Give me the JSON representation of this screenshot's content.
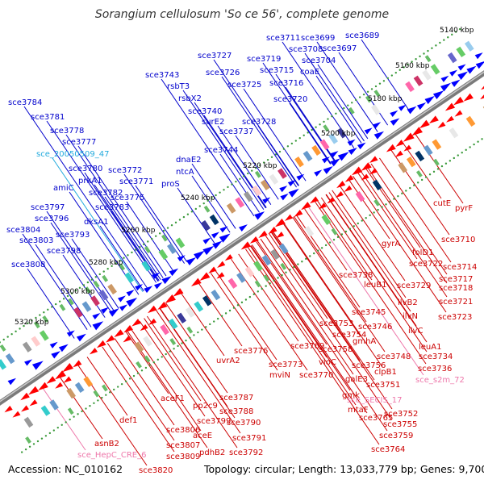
{
  "title": "Sorangium cellulosum 'So ce 56', complete genome",
  "footer": {
    "accession": "Accession: NC_010162",
    "topology": "Topology: circular; Length: 13,033,779 bp; Genes: 9,700"
  },
  "colors": {
    "forward_label": "#0000cc",
    "reverse_label": "#cc0000",
    "rna_label_blue": "#22aadd",
    "rna_label_pink": "#ee77aa",
    "forward_gene": "#0000ff",
    "reverse_gene": "#ff0000",
    "backbone": "#7a7a7a",
    "tick": "#3a9a3a"
  },
  "kbp_ticks": [
    "5140 kbp",
    "5160 kbp",
    "5180 kbp",
    "5200 kbp",
    "5220 kbp",
    "5240 kbp",
    "5260 kbp",
    "5280 kbp",
    "5300 kbp",
    "5320 kbp"
  ],
  "forward_labels": [
    "sce3711",
    "sce3699",
    "sce3689",
    "sce3708",
    "sce3697",
    "sce3727",
    "sce3719",
    "sce3704",
    "sce3726",
    "sce3715",
    "coaE",
    "sce3743",
    "sce3725",
    "sce3716",
    "rsbT3",
    "rsbX2",
    "sce3720",
    "sce3784",
    "sce3740",
    "sce3728",
    "surE2",
    "sce3781",
    "sce3737",
    "sce3778",
    "sce3777",
    "sce3744",
    "sce_20050509_47",
    "dnaE2",
    "sce3780",
    "sce3772",
    "ntcA",
    "prkA1",
    "sce3771",
    "amiC",
    "proS",
    "sce3782",
    "sce3775",
    "sce3797",
    "sce3783",
    "dksA1",
    "sce3796",
    "sce3804",
    "sce3793",
    "sce3803",
    "sce3798",
    "sce3808"
  ],
  "reverse_labels": [
    "cutE",
    "pyrF",
    "sce3710",
    "gyrA",
    "folD1",
    "sce3714",
    "sce3722",
    "sce3717",
    "sce3738",
    "sce3729",
    "sce3718",
    "leuB1",
    "ilvB2",
    "sce3721",
    "sce3745",
    "ilvN",
    "sce3723",
    "sce3746",
    "ilvC",
    "sce3753",
    "sce3754",
    "gmhA",
    "sce3758",
    "leuA1",
    "sce3769",
    "sce3776",
    "sce3748",
    "sce3734",
    "uvrA2",
    "sce3756",
    "sce3773",
    "clpB1",
    "sce3736",
    "mviN",
    "vioC",
    "sce3770",
    "galE3",
    "sce_s2m_72",
    "sce3751",
    "gmk",
    "sce_SECIS_17",
    "sce3787",
    "aceF1",
    "mtaF",
    "sce3752",
    "pp2c9",
    "sce3788",
    "sce3765",
    "sce3755",
    "sce3799",
    "sce3790",
    "def1",
    "sce3806",
    "aceE",
    "sce3759",
    "sce3791",
    "sce3807",
    "pdhB2",
    "sce3792",
    "sce3764",
    "asnB2",
    "sce3809",
    "sce_HepC_CRE_6",
    "sce3820"
  ]
}
